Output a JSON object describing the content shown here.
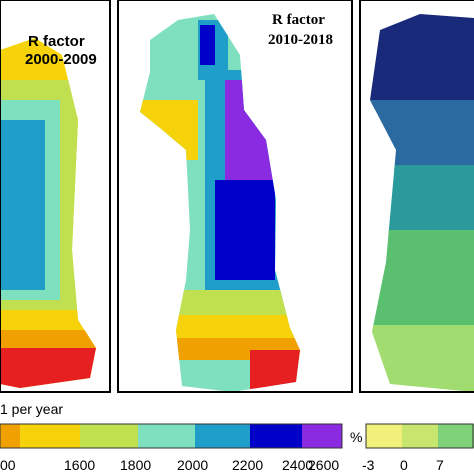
{
  "panels": [
    {
      "title": "R factor",
      "period": "2000-2009"
    },
    {
      "title": "R factor",
      "period": "2010-2018"
    }
  ],
  "legend_left": {
    "caption": "1 per year",
    "ticks": [
      "00",
      "1600",
      "1800",
      "2000",
      "2200",
      "2400",
      "2600"
    ]
  },
  "legend_right": {
    "unit": "%",
    "ticks": [
      "-3",
      "0",
      "7"
    ]
  }
}
